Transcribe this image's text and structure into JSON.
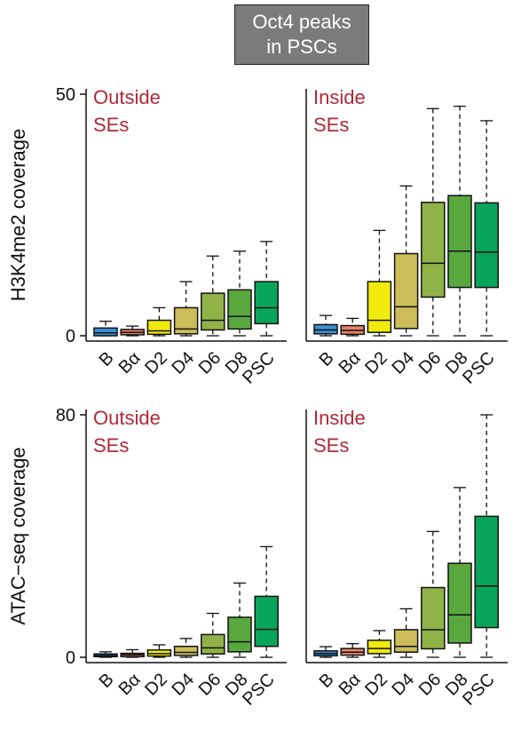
{
  "header": {
    "line1": "Oct4 peaks",
    "line2": "in PSCs"
  },
  "colors": {
    "annotation": "#b0283a",
    "header_bg": "#7b7b7b",
    "B": "#3b8fd4",
    "Bα": "#e8846a",
    "D2": "#f2ea0a",
    "D4": "#cdbd5a",
    "D6": "#8fb347",
    "D8": "#58a83e",
    "PSC": "#0aa55c"
  },
  "chart_data": [
    {
      "type": "boxplot",
      "panel": "H3K4me2 – Outside SEs",
      "annotation": [
        "Outside",
        "SEs"
      ],
      "ylabel": "H3K4me2 coverage",
      "yticks": [
        0,
        50
      ],
      "ylim": [
        0,
        50
      ],
      "categories": [
        "B",
        "Bα",
        "D2",
        "D4",
        "D6",
        "D8",
        "PSC"
      ],
      "boxes": [
        {
          "min": 0,
          "q1": 0,
          "median": 0.6,
          "q3": 1.6,
          "max": 3.0
        },
        {
          "min": 0,
          "q1": 0.2,
          "median": 0.7,
          "q3": 1.3,
          "max": 2.0
        },
        {
          "min": 0,
          "q1": 0.3,
          "median": 1.0,
          "q3": 3.2,
          "max": 5.8
        },
        {
          "min": 0,
          "q1": 0.4,
          "median": 1.4,
          "q3": 5.8,
          "max": 11.2
        },
        {
          "min": 0,
          "q1": 1.2,
          "median": 3.2,
          "q3": 8.8,
          "max": 16.5
        },
        {
          "min": 0,
          "q1": 1.4,
          "median": 4.0,
          "q3": 9.5,
          "max": 17.5
        },
        {
          "min": 0,
          "q1": 2.5,
          "median": 5.8,
          "q3": 11.2,
          "max": 19.5
        }
      ]
    },
    {
      "type": "boxplot",
      "panel": "H3K4me2 – Inside SEs",
      "annotation": [
        "Inside",
        "SEs"
      ],
      "ylim": [
        0,
        50
      ],
      "categories": [
        "B",
        "Bα",
        "D2",
        "D4",
        "D6",
        "D8",
        "PSC"
      ],
      "boxes": [
        {
          "min": 0,
          "q1": 0.4,
          "median": 1.2,
          "q3": 2.3,
          "max": 4.2
        },
        {
          "min": 0,
          "q1": 0.3,
          "median": 1.1,
          "q3": 2.1,
          "max": 3.6
        },
        {
          "min": 0,
          "q1": 0.7,
          "median": 3.2,
          "q3": 11.2,
          "max": 21.8
        },
        {
          "min": 0,
          "q1": 1.5,
          "median": 6.0,
          "q3": 17.0,
          "max": 31.0
        },
        {
          "min": 0,
          "q1": 8.0,
          "median": 15.0,
          "q3": 27.6,
          "max": 47.0
        },
        {
          "min": 0,
          "q1": 10.0,
          "median": 17.5,
          "q3": 29.0,
          "max": 47.5
        },
        {
          "min": 0,
          "q1": 10.0,
          "median": 17.3,
          "q3": 27.5,
          "max": 44.5
        }
      ]
    },
    {
      "type": "boxplot",
      "panel": "ATAC-seq – Outside SEs",
      "annotation": [
        "Outside",
        "SEs"
      ],
      "ylabel": "ATAC−seq coverage",
      "yticks": [
        0,
        80
      ],
      "ylim": [
        0,
        80
      ],
      "categories": [
        "B",
        "Bα",
        "D2",
        "D4",
        "D6",
        "D8",
        "PSC"
      ],
      "boxes": [
        {
          "min": 0,
          "q1": 0.2,
          "median": 0.6,
          "q3": 1.1,
          "max": 1.8
        },
        {
          "min": 0,
          "q1": 0.2,
          "median": 0.8,
          "q3": 1.3,
          "max": 2.5
        },
        {
          "min": 0,
          "q1": 0.4,
          "median": 1.2,
          "q3": 2.4,
          "max": 4.1
        },
        {
          "min": 0,
          "q1": 0.6,
          "median": 1.6,
          "q3": 3.6,
          "max": 6.2
        },
        {
          "min": 0,
          "q1": 1.1,
          "median": 3.1,
          "q3": 7.5,
          "max": 14.5
        },
        {
          "min": 0,
          "q1": 1.8,
          "median": 5.1,
          "q3": 13.2,
          "max": 24.5
        },
        {
          "min": 0,
          "q1": 3.6,
          "median": 9.2,
          "q3": 20.1,
          "max": 36.5
        }
      ]
    },
    {
      "type": "boxplot",
      "panel": "ATAC-seq – Inside SEs",
      "annotation": [
        "Inside",
        "SEs"
      ],
      "ylim": [
        0,
        80
      ],
      "categories": [
        "B",
        "Bα",
        "D2",
        "D4",
        "D6",
        "D8",
        "PSC"
      ],
      "boxes": [
        {
          "min": 0,
          "q1": 0.5,
          "median": 1.2,
          "q3": 2.1,
          "max": 3.5
        },
        {
          "min": 0,
          "q1": 0.7,
          "median": 1.7,
          "q3": 2.9,
          "max": 4.5
        },
        {
          "min": 0,
          "q1": 1.2,
          "median": 2.9,
          "q3": 5.6,
          "max": 8.8
        },
        {
          "min": 0,
          "q1": 1.7,
          "median": 3.6,
          "q3": 9.1,
          "max": 16.0
        },
        {
          "min": 0,
          "q1": 2.8,
          "median": 9.1,
          "q3": 23.0,
          "max": 41.5
        },
        {
          "min": 0,
          "q1": 4.7,
          "median": 14.0,
          "q3": 31.0,
          "max": 56.0
        },
        {
          "min": 0,
          "q1": 9.8,
          "median": 23.5,
          "q3": 46.5,
          "max": 80.0
        }
      ]
    }
  ]
}
